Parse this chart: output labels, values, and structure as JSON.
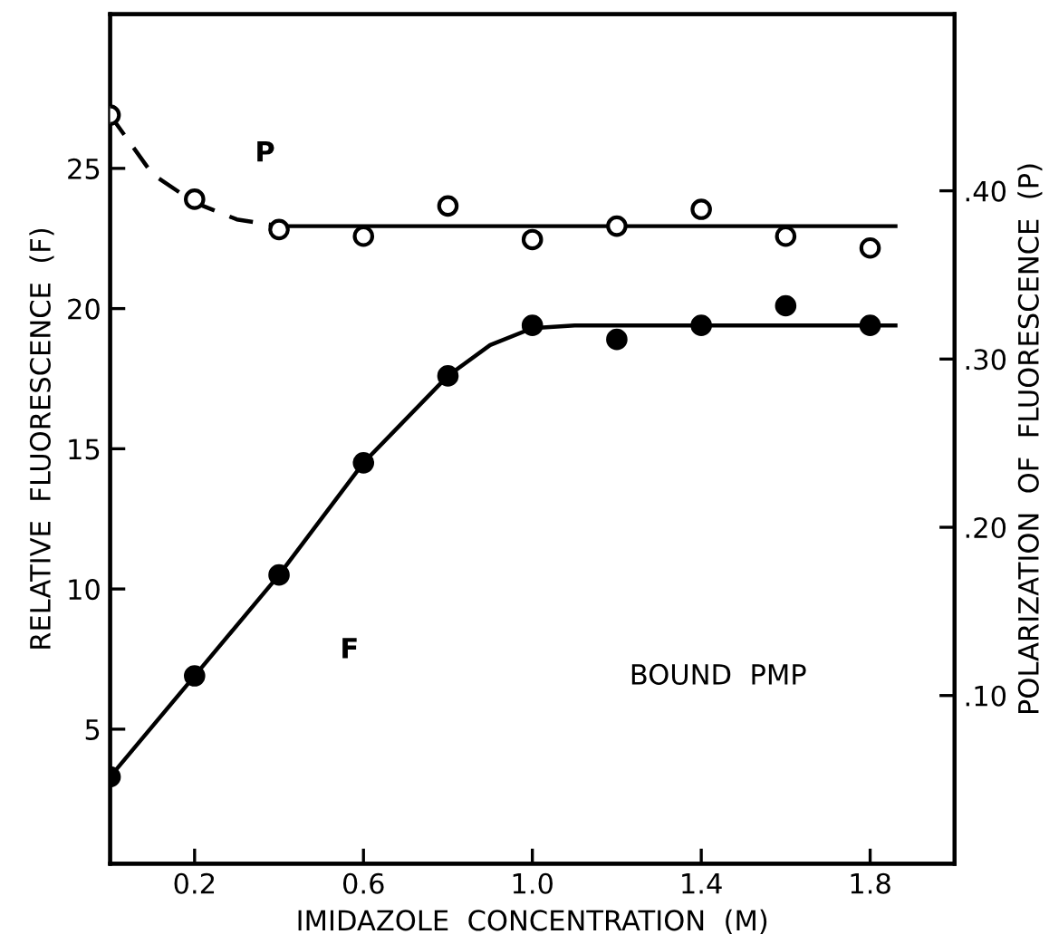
{
  "chart_data": {
    "type": "scatter",
    "xlabel": "IMIDAZOLE  CONCENTRATION  (M)",
    "ylabel": "RELATIVE  FLUORESCENCE  (F)",
    "y2label": "POLARIZATION  OF  FLUORESCENCE  (P)",
    "xlim": [
      0,
      2.0
    ],
    "xticks": [
      0.2,
      0.6,
      {
        "value": 1.0,
        "label": "1.0"
      },
      1.4,
      1.8
    ],
    "ylim": [
      0.2,
      30.5
    ],
    "yticks": [
      5,
      10,
      15,
      20,
      25
    ],
    "y2lim": [
      0,
      0.505
    ],
    "y2ticks": [
      {
        "value": 0.1,
        "label": ".10"
      },
      {
        "value": 0.2,
        "label": ".20"
      },
      {
        "value": 0.3,
        "label": ".30"
      },
      {
        "value": 0.4,
        "label": ".40"
      }
    ],
    "grid": false,
    "legend": false,
    "annotations": [
      "BOUND  PMP"
    ],
    "series": [
      {
        "name": "F",
        "marker": "circle",
        "color": "#000000",
        "x": [
          0,
          0.2,
          0.4,
          0.6,
          0.8,
          1.0,
          1.2,
          1.4,
          1.6,
          1.8
        ],
        "values": [
          3.3,
          6.9,
          10.5,
          14.5,
          17.6,
          19.4,
          18.9,
          19.4,
          20.1,
          19.4
        ]
      },
      {
        "type": "line",
        "marker": "none",
        "line_style": "solid",
        "color": "#000000",
        "x": [
          0,
          0.2,
          0.4,
          0.6,
          0.8,
          0.9,
          1.0,
          1.1,
          1.86
        ],
        "values": [
          3.3,
          6.9,
          10.5,
          14.5,
          17.6,
          18.7,
          19.3,
          19.4,
          19.4
        ]
      },
      {
        "name": "P",
        "axis": "y2",
        "marker": "circle",
        "color": "#000000",
        "x": [
          0,
          0.2,
          0.4,
          0.6,
          0.8,
          1.0,
          1.2,
          1.4,
          1.6,
          1.8
        ],
        "values": [
          0.445,
          0.395,
          0.377,
          0.373,
          0.391,
          0.371,
          0.379,
          0.389,
          0.373,
          0.366
        ]
      },
      {
        "type": "line",
        "axis": "y2",
        "marker": "none",
        "line_style": "dashed",
        "color": "#000000",
        "x": [
          0,
          0.1,
          0.2,
          0.3,
          0.4
        ],
        "values": [
          0.445,
          0.41,
          0.393,
          0.383,
          0.379
        ]
      },
      {
        "type": "line",
        "axis": "y2",
        "marker": "none",
        "line_style": "solid",
        "color": "#000000",
        "x": [
          0.4,
          1.86
        ],
        "values": [
          0.379,
          0.379
        ]
      }
    ]
  }
}
